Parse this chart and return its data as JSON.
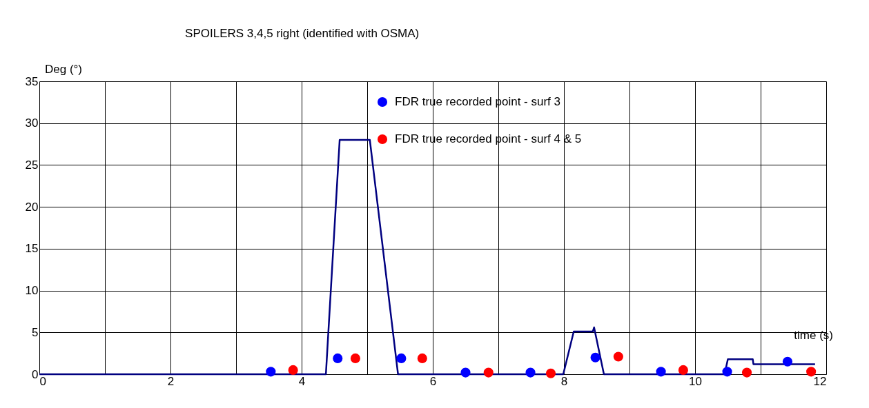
{
  "chart_data": {
    "type": "line",
    "title": "SPOILERS 3,4,5 right (identified with OSMA)",
    "xlabel": "time (s)",
    "ylabel": "Deg (°)",
    "xlim": [
      0,
      12
    ],
    "ylim": [
      0,
      35
    ],
    "xticks": [
      0,
      {
        "value": 1,
        "label": null
      },
      2,
      {
        "value": 3,
        "label": null
      },
      4,
      {
        "value": 5,
        "label": null
      },
      6,
      {
        "value": 7,
        "label": null
      },
      8,
      {
        "value": 9,
        "label": null
      },
      10,
      {
        "value": 11,
        "label": null
      },
      12
    ],
    "yticks": [
      0,
      5,
      10,
      15,
      20,
      25,
      30,
      35
    ],
    "grid": true,
    "legend": "top",
    "line_style": "solid",
    "series": [
      {
        "color": "#000080",
        "x": [
          0,
          4.37,
          4.58,
          5.04,
          5.47,
          7.99,
          8.15,
          8.44,
          8.46,
          8.61,
          10.45,
          10.5,
          10.88,
          10.89,
          11.83
        ],
        "values": [
          0,
          0,
          28,
          28,
          0,
          0,
          5.1,
          5.1,
          5.6,
          0,
          0,
          1.8,
          1.8,
          1.2,
          1.2
        ]
      },
      {
        "type": "scatter",
        "name": "FDR true recorded point - surf 3",
        "color": "#0000ff",
        "marker": "circle",
        "x": [
          3.53,
          4.55,
          5.52,
          6.5,
          7.49,
          8.48,
          9.48,
          10.49,
          11.41
        ],
        "values": [
          0.3,
          1.9,
          1.9,
          0.2,
          0.2,
          2.0,
          0.3,
          0.3,
          1.5
        ]
      },
      {
        "type": "scatter",
        "name": "FDR true recorded point - surf 4 & 5",
        "color": "#ff0000",
        "marker": "circle",
        "x": [
          3.87,
          4.82,
          5.84,
          6.85,
          7.8,
          8.83,
          9.82,
          10.79,
          11.77
        ],
        "values": [
          0.5,
          1.9,
          1.9,
          0.2,
          0.1,
          2.1,
          0.5,
          0.2,
          0.3
        ]
      }
    ]
  }
}
